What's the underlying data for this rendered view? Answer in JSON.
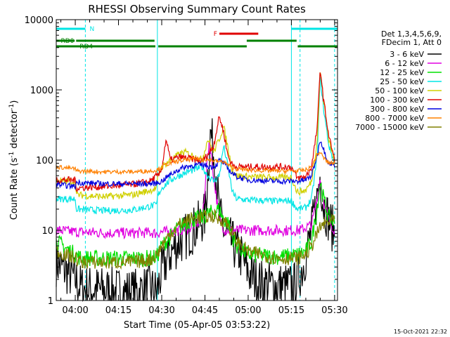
{
  "chart_data": {
    "type": "line",
    "title": "RHESSI Observing Summary Count Rates",
    "xlabel": "Start Time (05-Apr-05 03:53:22)",
    "ylabel_main": "Count Rate (s",
    "ylabel_sup1": "-1",
    "ylabel_mid": " detector",
    "ylabel_sup2": "-1",
    "ylabel_end": ")",
    "yscale": "log",
    "ylim": [
      1,
      10000
    ],
    "xlim_min": [
      233.4,
      331
    ],
    "x_ticks": [
      {
        "t": 240,
        "label": "04:00"
      },
      {
        "t": 255,
        "label": "04:15"
      },
      {
        "t": 270,
        "label": "04:30"
      },
      {
        "t": 285,
        "label": "04:45"
      },
      {
        "t": 300,
        "label": "05:00"
      },
      {
        "t": 315,
        "label": "05:15"
      },
      {
        "t": 330,
        "label": "05:30"
      }
    ],
    "y_ticks": [
      {
        "v": 1,
        "label": "1"
      },
      {
        "v": 10,
        "label": "10"
      },
      {
        "v": 100,
        "label": "100"
      },
      {
        "v": 1000,
        "label": "1000"
      },
      {
        "v": 10000,
        "label": "10000"
      }
    ],
    "legend_header": [
      "Det 1,3,4,5,6,9,",
      "FDecim 1, Att 0"
    ],
    "legend_placement": "top-right, outside plot",
    "timestamp": "15-Oct-2021 22:32",
    "flags": [
      {
        "label": "N",
        "color": "#00e5e5",
        "segments": [
          [
            233.4,
            243.5
          ],
          [
            315,
            331
          ]
        ]
      },
      {
        "label": "F",
        "color": "#e00000",
        "segments": [
          [
            290,
            303.5
          ]
        ]
      },
      {
        "label": "RD0",
        "color": "#008000",
        "segments": [
          [
            233.4,
            239.8
          ],
          [
            240.3,
            267.5
          ],
          [
            299.5,
            316.8
          ]
        ]
      },
      {
        "label": "RD4",
        "color": "#008000",
        "segments": [
          [
            233.4,
            267.8
          ],
          [
            268.8,
            299.5
          ],
          [
            317.2,
            331
          ]
        ]
      }
    ],
    "night_markers_solid": [
      233.4,
      268.5,
      315
    ],
    "night_markers_dashed": [
      243.5,
      318,
      330
    ],
    "series": [
      {
        "name": "3 - 6 keV",
        "color": "#000000",
        "values": [
          [
            233.4,
            3.5
          ],
          [
            240,
            2
          ],
          [
            242,
            1.5
          ],
          [
            250,
            1.4
          ],
          [
            260,
            1.3
          ],
          [
            266,
            1.5
          ],
          [
            268.3,
            1.3
          ],
          [
            270,
            2.5
          ],
          [
            272,
            4
          ],
          [
            275,
            6
          ],
          [
            278,
            8
          ],
          [
            282,
            11
          ],
          [
            285,
            16
          ],
          [
            287,
            260
          ],
          [
            289,
            60
          ],
          [
            290,
            16
          ],
          [
            292,
            9
          ],
          [
            295,
            6
          ],
          [
            298,
            4
          ],
          [
            300,
            2.5
          ],
          [
            304,
            1.8
          ],
          [
            310,
            1.6
          ],
          [
            314,
            1.6
          ],
          [
            316,
            1.6
          ],
          [
            319,
            3
          ],
          [
            322,
            10
          ],
          [
            324,
            30
          ],
          [
            325,
            62
          ],
          [
            326,
            25
          ],
          [
            328,
            14
          ],
          [
            330,
            9
          ]
        ]
      },
      {
        "name": "6 - 12 keV",
        "color": "#e000e0",
        "values": [
          [
            233.4,
            10
          ],
          [
            240,
            9.5
          ],
          [
            250,
            9.2
          ],
          [
            260,
            9.1
          ],
          [
            266,
            9.3
          ],
          [
            268.3,
            9
          ],
          [
            270,
            9.5
          ],
          [
            273,
            9.5
          ],
          [
            276,
            10
          ],
          [
            280,
            11
          ],
          [
            284,
            14
          ],
          [
            286.5,
            200
          ],
          [
            288,
            60
          ],
          [
            290,
            14
          ],
          [
            292,
            10
          ],
          [
            296,
            10
          ],
          [
            300,
            10
          ],
          [
            310,
            10
          ],
          [
            315,
            10
          ],
          [
            318,
            10
          ],
          [
            322,
            12
          ],
          [
            324,
            30
          ],
          [
            325,
            55
          ],
          [
            326,
            28
          ],
          [
            328,
            14
          ],
          [
            330,
            10
          ]
        ]
      },
      {
        "name": "12 - 25 keV",
        "color": "#00e000",
        "values": [
          [
            233.4,
            7
          ],
          [
            240,
            4.5
          ],
          [
            242,
            4
          ],
          [
            250,
            4
          ],
          [
            260,
            4
          ],
          [
            266,
            4
          ],
          [
            268.3,
            4.2
          ],
          [
            270,
            6
          ],
          [
            273,
            8
          ],
          [
            276,
            11
          ],
          [
            280,
            14
          ],
          [
            284,
            15
          ],
          [
            286,
            17
          ],
          [
            287.5,
            18
          ],
          [
            290,
            20
          ],
          [
            291.5,
            14
          ],
          [
            293,
            13
          ],
          [
            294.5,
            8
          ],
          [
            296,
            6
          ],
          [
            300,
            4.5
          ],
          [
            310,
            4.2
          ],
          [
            315,
            4.3
          ],
          [
            317,
            4.5
          ],
          [
            320,
            5
          ],
          [
            322,
            7
          ],
          [
            324,
            22
          ],
          [
            325,
            50
          ],
          [
            326,
            30
          ],
          [
            328,
            15
          ],
          [
            330,
            13
          ]
        ]
      },
      {
        "name": "25 - 50 keV",
        "color": "#00e5e5",
        "values": [
          [
            233.4,
            28
          ],
          [
            240,
            28
          ],
          [
            240.3,
            20
          ],
          [
            250,
            19
          ],
          [
            260,
            19.5
          ],
          [
            266,
            22
          ],
          [
            268.3,
            23
          ],
          [
            268.5,
            30
          ],
          [
            270,
            40
          ],
          [
            273,
            52
          ],
          [
            276,
            60
          ],
          [
            280,
            70
          ],
          [
            284,
            80
          ],
          [
            286,
            60
          ],
          [
            288,
            50
          ],
          [
            290,
            60
          ],
          [
            291.5,
            160
          ],
          [
            293,
            80
          ],
          [
            294.5,
            35
          ],
          [
            296,
            28
          ],
          [
            300,
            27
          ],
          [
            310,
            26
          ],
          [
            315,
            26.5
          ],
          [
            317,
            20
          ],
          [
            320,
            21
          ],
          [
            322,
            28
          ],
          [
            324,
            120
          ],
          [
            325,
            1600
          ],
          [
            326,
            600
          ],
          [
            328,
            160
          ],
          [
            330,
            90
          ]
        ]
      },
      {
        "name": "50 - 100 keV",
        "color": "#d0d000",
        "values": [
          [
            233.4,
            50
          ],
          [
            240,
            50
          ],
          [
            240.3,
            32
          ],
          [
            250,
            30
          ],
          [
            260,
            32
          ],
          [
            266,
            37
          ],
          [
            268.3,
            40
          ],
          [
            268.5,
            55
          ],
          [
            270,
            80
          ],
          [
            273,
            100
          ],
          [
            276,
            120
          ],
          [
            278,
            130
          ],
          [
            280,
            120
          ],
          [
            284,
            100
          ],
          [
            286,
            200
          ],
          [
            288,
            130
          ],
          [
            290,
            200
          ],
          [
            291.5,
            300
          ],
          [
            293,
            150
          ],
          [
            294.5,
            70
          ],
          [
            296,
            60
          ],
          [
            300,
            58
          ],
          [
            310,
            56
          ],
          [
            315,
            57
          ],
          [
            317,
            35
          ],
          [
            320,
            37
          ],
          [
            322,
            50
          ],
          [
            324,
            200
          ],
          [
            325,
            2000
          ],
          [
            326,
            800
          ],
          [
            328,
            200
          ],
          [
            330,
            95
          ]
        ]
      },
      {
        "name": "100 - 300 keV",
        "color": "#e00000",
        "values": [
          [
            233.4,
            52
          ],
          [
            240,
            52
          ],
          [
            240.3,
            40
          ],
          [
            250,
            42
          ],
          [
            260,
            45
          ],
          [
            266,
            50
          ],
          [
            268.3,
            60
          ],
          [
            268.5,
            56
          ],
          [
            270,
            75
          ],
          [
            271.5,
            200
          ],
          [
            273,
            100
          ],
          [
            276,
            110
          ],
          [
            280,
            105
          ],
          [
            284,
            95
          ],
          [
            286,
            120
          ],
          [
            288,
            160
          ],
          [
            290,
            420
          ],
          [
            291.5,
            250
          ],
          [
            293,
            115
          ],
          [
            294.5,
            85
          ],
          [
            296,
            80
          ],
          [
            300,
            80
          ],
          [
            310,
            80
          ],
          [
            315,
            80
          ],
          [
            317,
            55
          ],
          [
            320,
            58
          ],
          [
            322,
            80
          ],
          [
            324,
            300
          ],
          [
            325,
            2100
          ],
          [
            326,
            800
          ],
          [
            328,
            220
          ],
          [
            330,
            100
          ]
        ]
      },
      {
        "name": "300 - 800 keV",
        "color": "#0000e0",
        "values": [
          [
            233.4,
            45
          ],
          [
            240,
            42
          ],
          [
            240.3,
            48
          ],
          [
            250,
            46
          ],
          [
            260,
            46
          ],
          [
            266,
            46
          ],
          [
            268.3,
            47
          ],
          [
            270,
            50
          ],
          [
            272,
            58
          ],
          [
            275,
            70
          ],
          [
            278,
            80
          ],
          [
            282,
            85
          ],
          [
            285,
            85
          ],
          [
            287,
            80
          ],
          [
            289,
            85
          ],
          [
            290,
            100
          ],
          [
            291.5,
            90
          ],
          [
            293,
            75
          ],
          [
            294.5,
            65
          ],
          [
            296,
            58
          ],
          [
            300,
            52
          ],
          [
            310,
            50
          ],
          [
            315,
            50
          ],
          [
            317,
            50
          ],
          [
            320,
            52
          ],
          [
            322,
            60
          ],
          [
            324,
            120
          ],
          [
            325,
            200
          ],
          [
            326,
            150
          ],
          [
            328,
            90
          ],
          [
            330,
            85
          ]
        ]
      },
      {
        "name": "800 - 7000 keV",
        "color": "#ff8000",
        "values": [
          [
            233.4,
            80
          ],
          [
            240,
            75
          ],
          [
            240.3,
            70
          ],
          [
            250,
            68
          ],
          [
            260,
            68
          ],
          [
            266,
            70
          ],
          [
            268.3,
            72
          ],
          [
            270,
            80
          ],
          [
            272,
            88
          ],
          [
            275,
            95
          ],
          [
            278,
            100
          ],
          [
            282,
            105
          ],
          [
            285,
            103
          ],
          [
            287,
            100
          ],
          [
            290,
            95
          ],
          [
            291.5,
            95
          ],
          [
            293,
            85
          ],
          [
            294.5,
            78
          ],
          [
            296,
            75
          ],
          [
            300,
            72
          ],
          [
            310,
            70
          ],
          [
            315,
            70
          ],
          [
            317,
            70
          ],
          [
            320,
            72
          ],
          [
            322,
            80
          ],
          [
            324,
            120
          ],
          [
            325,
            130
          ],
          [
            326,
            110
          ],
          [
            328,
            90
          ],
          [
            330,
            92
          ]
        ]
      },
      {
        "name": "7000 - 15000 keV",
        "color": "#808000",
        "values": [
          [
            233.4,
            5
          ],
          [
            240,
            4
          ],
          [
            242,
            3.5
          ],
          [
            250,
            3.5
          ],
          [
            260,
            3.5
          ],
          [
            266,
            3.8
          ],
          [
            268.3,
            4.5
          ],
          [
            270,
            6
          ],
          [
            273,
            9
          ],
          [
            276,
            12
          ],
          [
            280,
            14.5
          ],
          [
            284,
            15.5
          ],
          [
            286,
            15.5
          ],
          [
            288,
            16
          ],
          [
            290,
            14
          ],
          [
            291.5,
            14
          ],
          [
            293,
            12
          ],
          [
            294.5,
            9
          ],
          [
            296,
            7
          ],
          [
            300,
            5
          ],
          [
            310,
            4
          ],
          [
            315,
            4
          ],
          [
            317,
            4
          ],
          [
            320,
            4.5
          ],
          [
            322,
            6
          ],
          [
            324,
            9
          ],
          [
            325,
            11
          ],
          [
            326,
            12
          ],
          [
            328,
            13
          ],
          [
            330,
            14
          ]
        ]
      }
    ]
  }
}
